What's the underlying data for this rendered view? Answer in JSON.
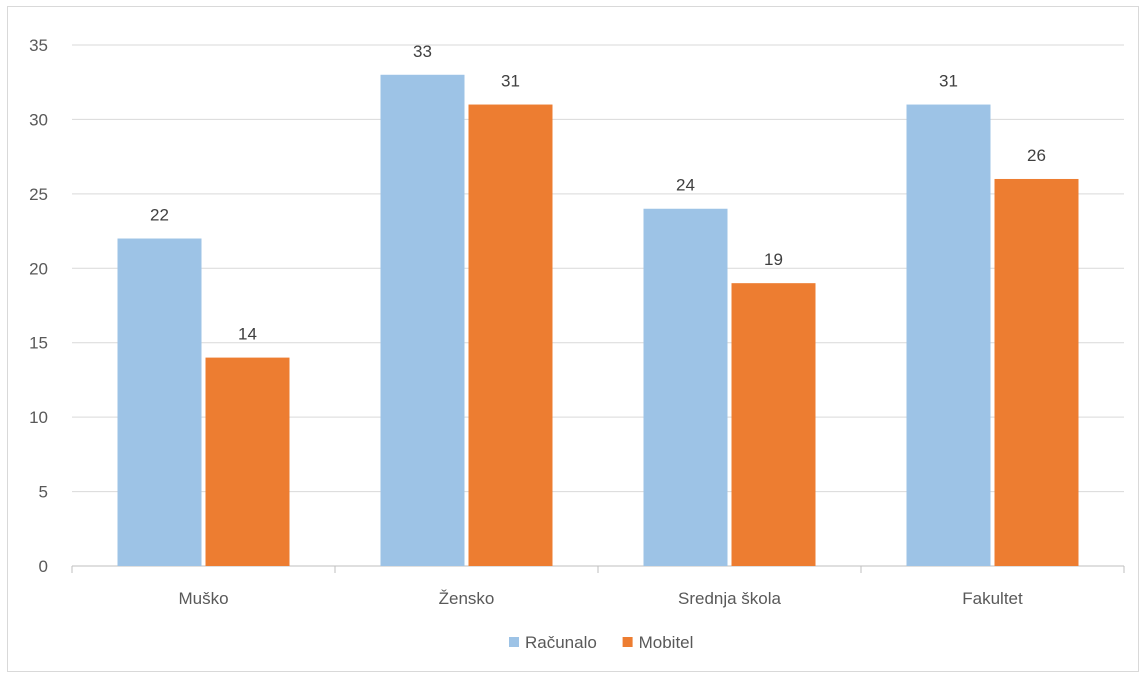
{
  "chart_data": {
    "type": "bar",
    "categories": [
      "Muško",
      "Žensko",
      "Srednja škola",
      "Fakultet"
    ],
    "series": [
      {
        "name": "Računalo",
        "values": [
          22,
          33,
          24,
          31
        ],
        "color": "#9DC3E6"
      },
      {
        "name": "Mobitel",
        "values": [
          14,
          31,
          19,
          26
        ],
        "color": "#ED7D31"
      }
    ],
    "ylim": [
      0,
      35
    ],
    "yticks": [
      0,
      5,
      10,
      15,
      20,
      25,
      30,
      35
    ],
    "grid": true,
    "legend_position": "bottom",
    "data_labels": true,
    "gridline_color": "#d9d9d9",
    "axis_color": "#bfbfbf"
  }
}
